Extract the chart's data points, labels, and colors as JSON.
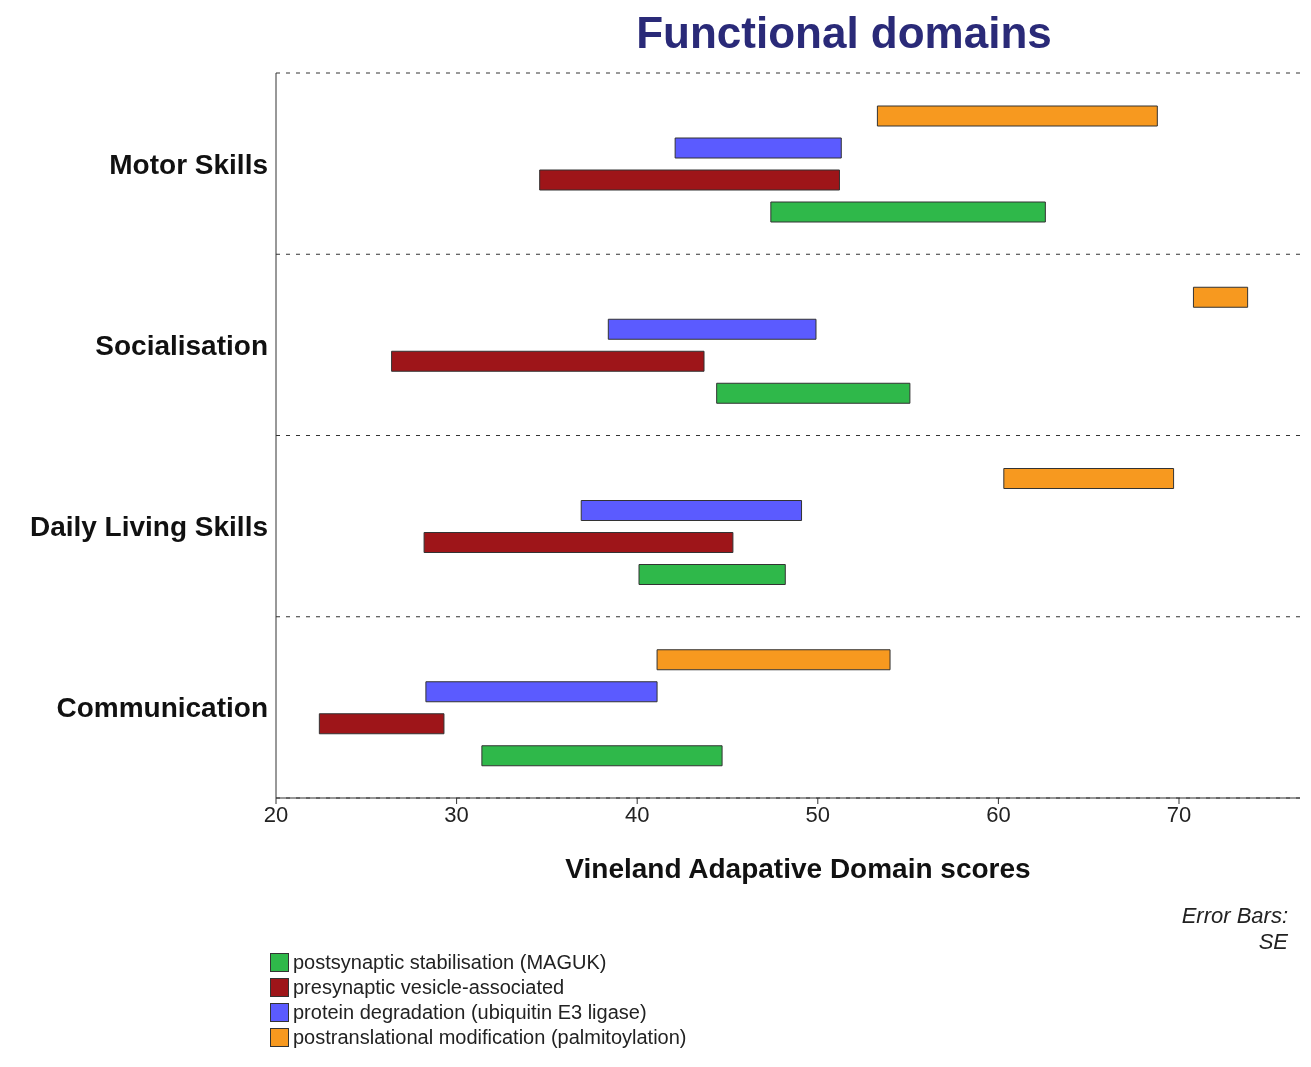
{
  "chart_data": {
    "type": "bar",
    "orientation": "horizontal",
    "title": "Functional domains",
    "xlabel": "Vineland Adapative Domain scores",
    "categories": [
      "Motor Skills",
      "Socialisation",
      "Daily Living Skills",
      "Communication"
    ],
    "series": [
      {
        "name": "postsynaptic stabilisation (MAGUK)",
        "color": "#2fb84a",
        "base": [
          47.4,
          44.4,
          40.1,
          31.4
        ],
        "values": [
          15.2,
          10.7,
          8.1,
          13.3
        ]
      },
      {
        "name": "presynaptic vesicle-associated",
        "color": "#9e1519",
        "base": [
          34.6,
          26.4,
          28.2,
          22.4
        ],
        "values": [
          16.6,
          17.3,
          17.1,
          6.9
        ]
      },
      {
        "name": "protein degradation (ubiquitin E3 ligase)",
        "color": "#5b5bff",
        "base": [
          42.1,
          38.4,
          36.9,
          28.3
        ],
        "values": [
          9.2,
          11.5,
          12.2,
          12.8
        ]
      },
      {
        "name": "postranslational modification (palmitoylation)",
        "color": "#f7991f",
        "base": [
          53.3,
          70.8,
          60.3,
          41.1
        ],
        "values": [
          15.5,
          3.0,
          9.4,
          12.9
        ]
      }
    ],
    "xlim": [
      20,
      76.7
    ],
    "xticks": [
      20,
      30,
      40,
      50,
      60,
      70
    ],
    "grid": "y",
    "legend": "bottom",
    "annotations": [
      "Error Bars: SE"
    ]
  }
}
